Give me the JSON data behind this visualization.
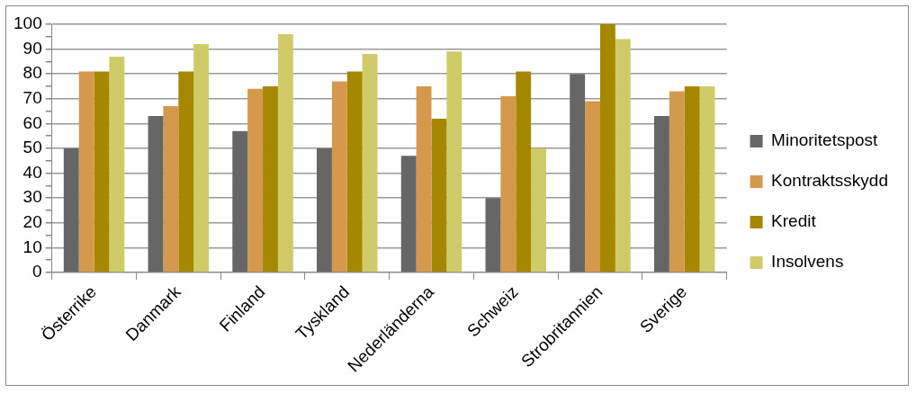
{
  "chart_data": {
    "type": "bar",
    "categories": [
      "Österrike",
      "Danmark",
      "Finland",
      "Tyskland",
      "Nederländerna",
      "Schweiz",
      "Strobritannien",
      "Sverige"
    ],
    "series": [
      {
        "name": "Minoritetspost",
        "color": "#666666",
        "values": [
          50,
          63,
          57,
          50,
          47,
          30,
          80,
          63
        ]
      },
      {
        "name": "Kontraktsskydd",
        "color": "#d4994c",
        "values": [
          81,
          67,
          74,
          77,
          75,
          71,
          69,
          73
        ]
      },
      {
        "name": "Kredit",
        "color": "#a68800",
        "values": [
          81,
          81,
          75,
          81,
          62,
          81,
          100,
          75
        ]
      },
      {
        "name": "Insolvens",
        "color": "#cfcb68",
        "values": [
          87,
          92,
          96,
          88,
          89,
          50,
          94,
          75
        ]
      }
    ],
    "ylim": [
      0,
      100
    ],
    "yticks": [
      0,
      {
        "value": 5,
        "label": null
      },
      10,
      {
        "value": 15,
        "label": null
      },
      20,
      {
        "value": 25,
        "label": null
      },
      30,
      {
        "value": 35,
        "label": null
      },
      40,
      {
        "value": 45,
        "label": null
      },
      50,
      {
        "value": 55,
        "label": null
      },
      60,
      {
        "value": 65,
        "label": null
      },
      70,
      {
        "value": 75,
        "label": null
      },
      80,
      {
        "value": 85,
        "label": null
      },
      90,
      {
        "value": 95,
        "label": null
      },
      100
    ],
    "grid": "y",
    "legend": "right"
  }
}
